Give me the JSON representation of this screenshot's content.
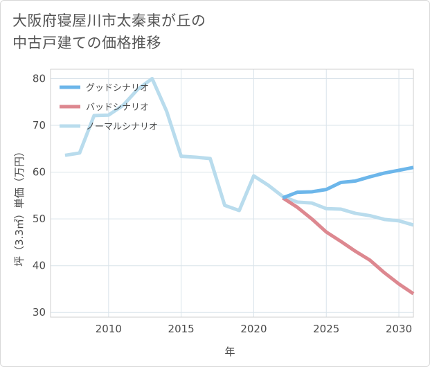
{
  "chart_data": {
    "type": "line",
    "title_lines": [
      "大阪府寝屋川市太秦東が丘の",
      "中古戸建ての価格推移"
    ],
    "xlabel": "年",
    "ylabel": "坪（3.3㎡）単価（万円）",
    "xlim": [
      2006,
      2031
    ],
    "ylim": [
      29,
      82
    ],
    "xticks": [
      2010,
      2015,
      2020,
      2025,
      2030
    ],
    "yticks": [
      30,
      40,
      50,
      60,
      70,
      80
    ],
    "grid": true,
    "legend_position": "top-left",
    "series": [
      {
        "name": "グッドシナリオ",
        "color": "#6cb6ea",
        "x": [
          2022,
          2023,
          2024,
          2025,
          2026,
          2027,
          2028,
          2029,
          2030,
          2031
        ],
        "y": [
          54.5,
          55.7,
          55.8,
          56.3,
          57.8,
          58.1,
          59.0,
          59.8,
          60.4,
          61.0
        ]
      },
      {
        "name": "バッドシナリオ",
        "color": "#dd8890",
        "x": [
          2022,
          2023,
          2024,
          2025,
          2026,
          2027,
          2028,
          2029,
          2030,
          2031
        ],
        "y": [
          54.5,
          52.5,
          50.0,
          47.2,
          45.2,
          43.1,
          41.2,
          38.5,
          36.1,
          34.0
        ]
      },
      {
        "name": "ノーマルシナリオ",
        "color": "#b9dced",
        "x": [
          2007,
          2008,
          2009,
          2010,
          2011,
          2012,
          2013,
          2014,
          2015,
          2016,
          2017,
          2018,
          2019,
          2020,
          2021,
          2022,
          2023,
          2024,
          2025,
          2026,
          2027,
          2028,
          2029,
          2030,
          2031
        ],
        "y": [
          63.6,
          64.1,
          72.1,
          72.2,
          74.3,
          77.7,
          80.0,
          73.0,
          63.4,
          63.2,
          62.9,
          52.9,
          51.8,
          59.2,
          57.2,
          54.8,
          53.6,
          53.4,
          52.2,
          52.1,
          51.2,
          50.7,
          49.9,
          49.6,
          48.7
        ]
      }
    ]
  }
}
